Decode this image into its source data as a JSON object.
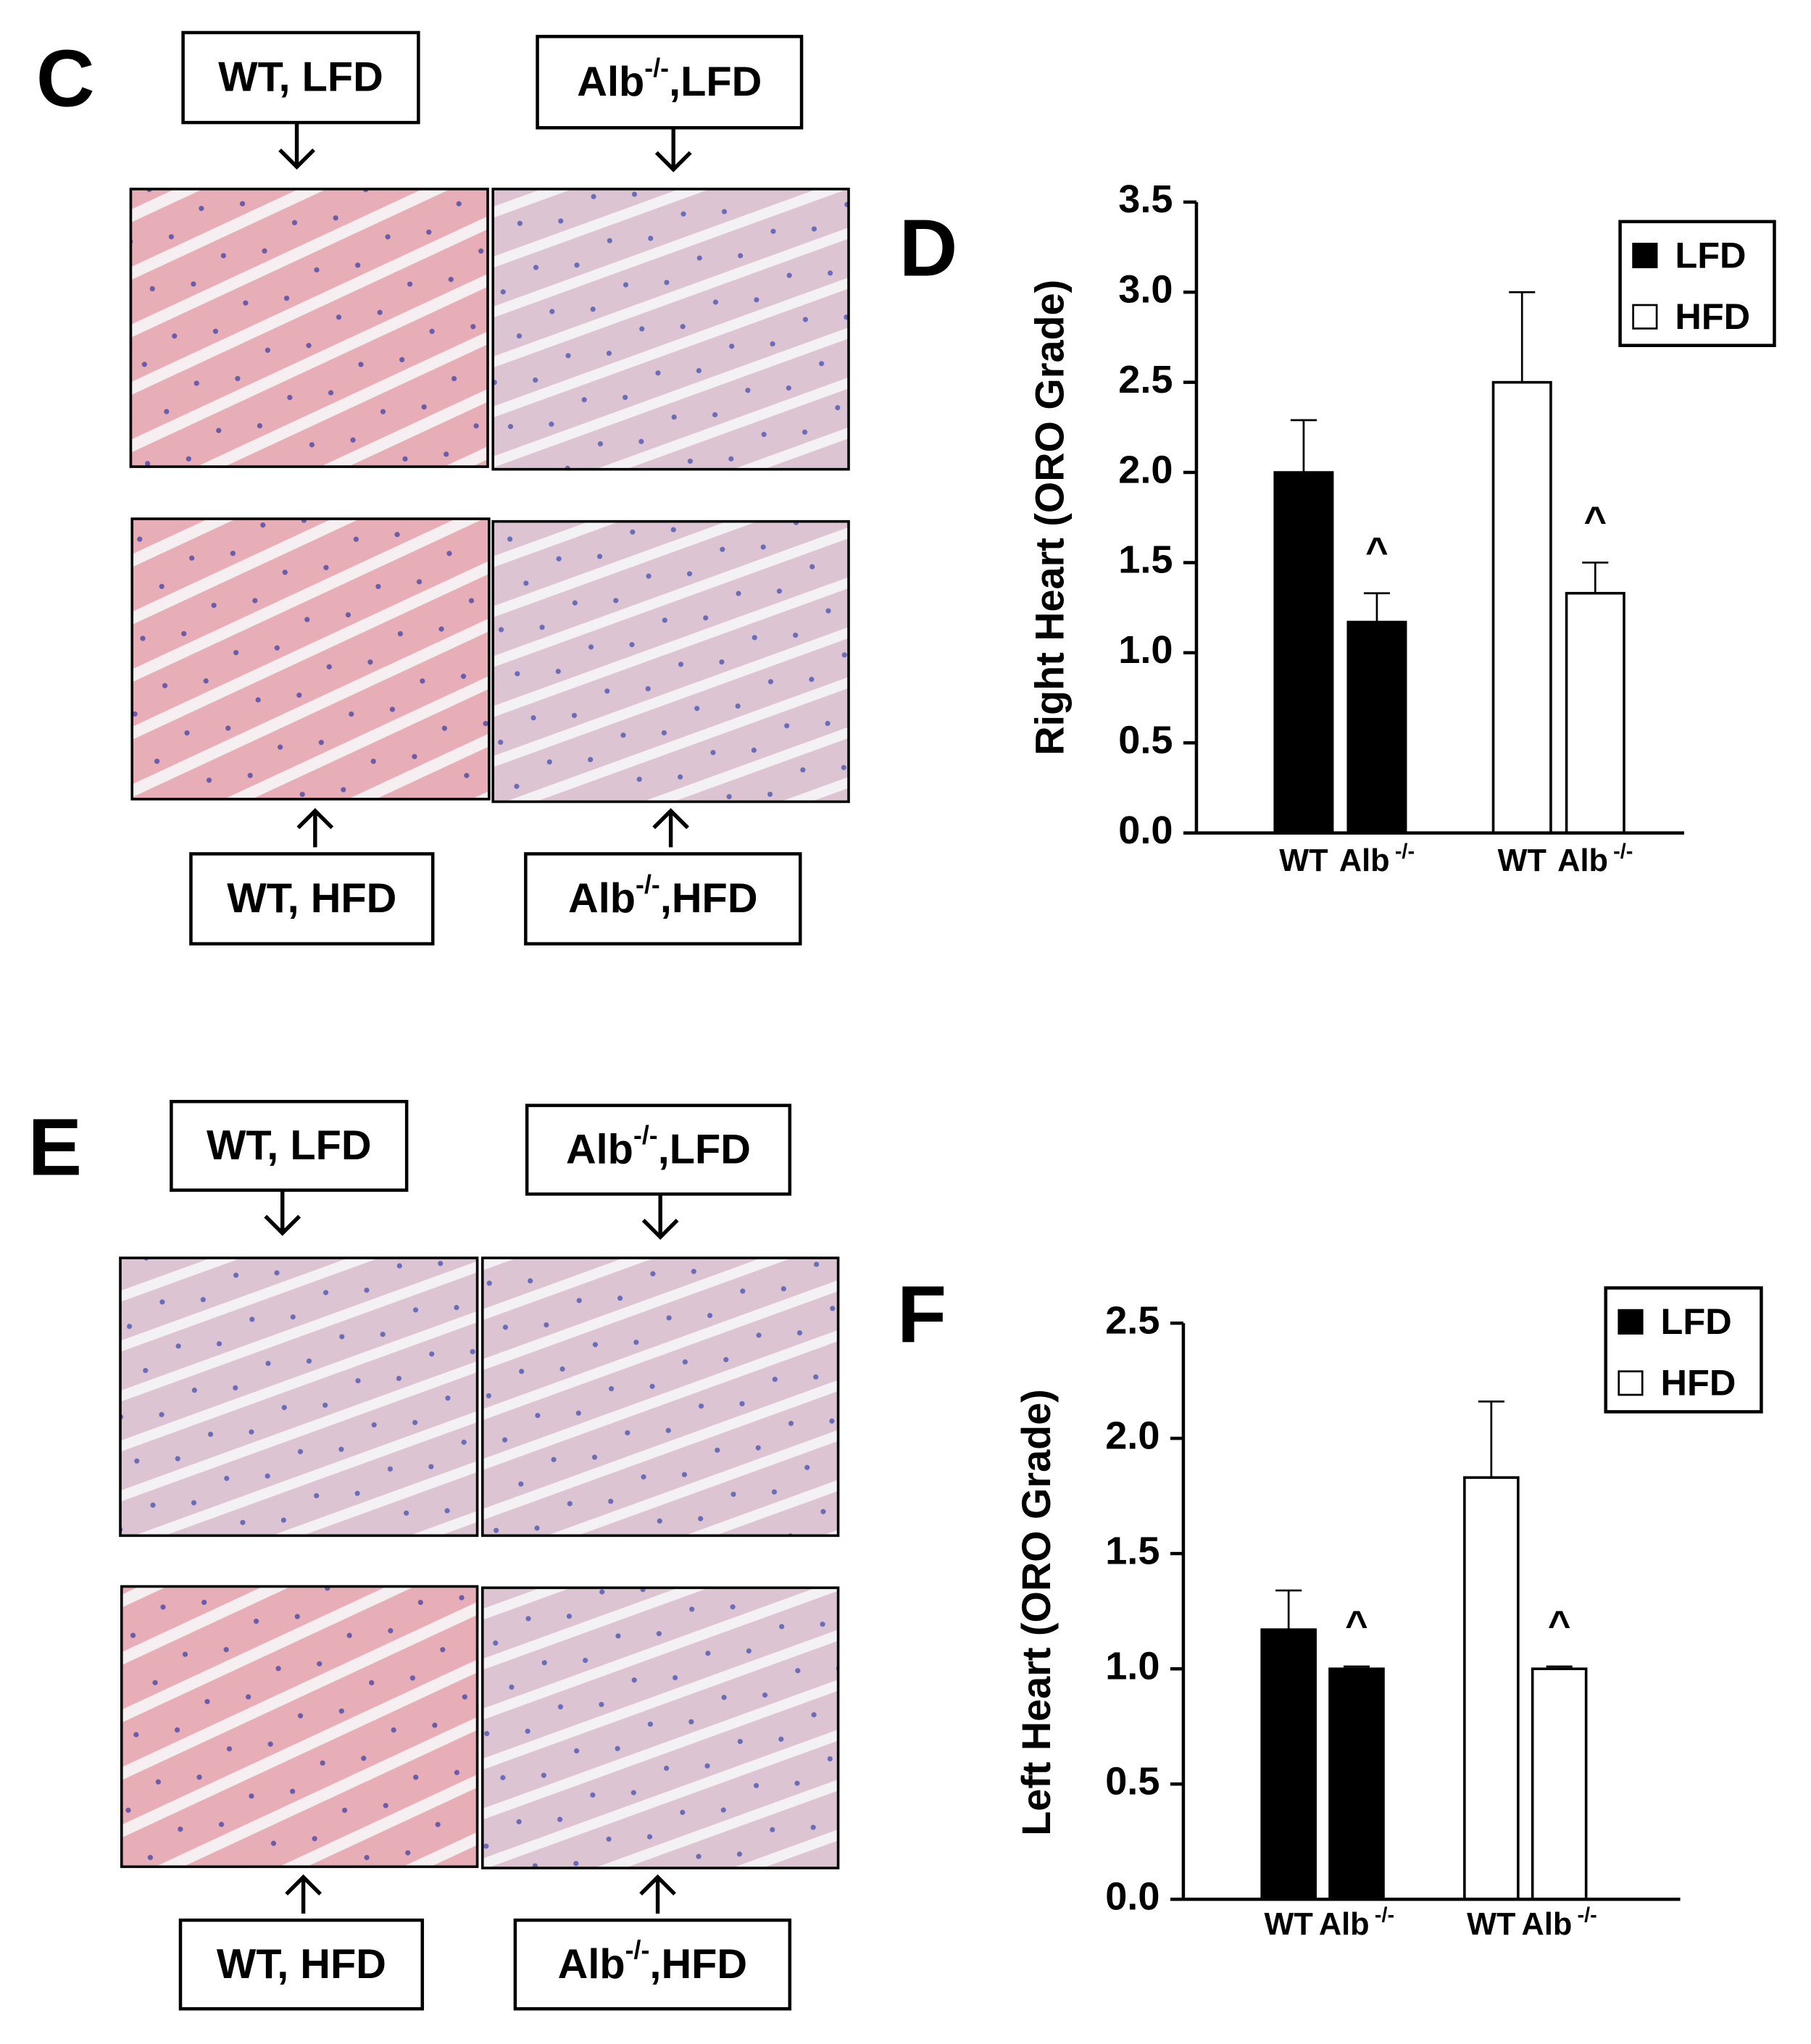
{
  "panels": [
    {
      "label": "C",
      "captions": [
        {
          "text": "WT, LFD"
        },
        {
          "text": "Alb",
          "sup": "-/-",
          "rest": ",LFD"
        },
        {
          "text": "WT, HFD"
        },
        {
          "text": "Alb",
          "sup": "-/-",
          "rest": ",HFD"
        }
      ]
    },
    {
      "label": "E",
      "captions": [
        {
          "text": "WT, LFD"
        },
        {
          "text": "Alb",
          "sup": "-/-",
          "rest": ",LFD"
        },
        {
          "text": "WT, HFD"
        },
        {
          "text": "Alb",
          "sup": "-/-",
          "rest": ",HFD"
        }
      ]
    }
  ],
  "chart_data": [
    {
      "type": "bar",
      "label": "D",
      "y_label": "Right Heart (ORO Grade)",
      "categories": [
        "WT",
        "Alb"
      ],
      "category_superscripts": [
        null,
        "-/-"
      ],
      "series": [
        {
          "name": "LFD",
          "color": "#000000",
          "values": [
            2.0,
            1.17
          ],
          "errors": [
            0.29,
            0.16
          ],
          "annotations": [
            null,
            "^"
          ]
        },
        {
          "name": "HFD",
          "color": "#ffffff",
          "values": [
            2.5,
            1.33
          ],
          "errors": [
            0.5,
            0.17
          ],
          "annotations": [
            null,
            "^"
          ]
        }
      ],
      "ylim": [
        0,
        3.5
      ],
      "yticks": [
        {
          "value": 0,
          "label": "0.0"
        },
        0.5,
        {
          "value": 1,
          "label": "1.0"
        },
        1.5,
        {
          "value": 2,
          "label": "2.0"
        },
        2.5,
        {
          "value": 3,
          "label": "3.0"
        },
        3.5
      ],
      "legend": "upper right"
    },
    {
      "type": "bar",
      "label": "F",
      "y_label": "Left Heart (ORO Grade)",
      "categories": [
        "WT",
        "Alb"
      ],
      "category_superscripts": [
        null,
        "-/-"
      ],
      "series": [
        {
          "name": "LFD",
          "color": "#000000",
          "values": [
            1.17,
            1.0
          ],
          "errors": [
            0.17,
            0.01
          ],
          "annotations": [
            null,
            "^"
          ]
        },
        {
          "name": "HFD",
          "color": "#ffffff",
          "values": [
            1.83,
            1.0
          ],
          "errors": [
            0.33,
            0.01
          ],
          "annotations": [
            null,
            "^"
          ]
        }
      ],
      "ylim": [
        0,
        2.5
      ],
      "yticks": [
        {
          "value": 0,
          "label": "0.0"
        },
        0.5,
        {
          "value": 1,
          "label": "1.0"
        },
        1.5,
        {
          "value": 2,
          "label": "2.0"
        },
        2.5
      ],
      "legend": "upper right"
    }
  ]
}
